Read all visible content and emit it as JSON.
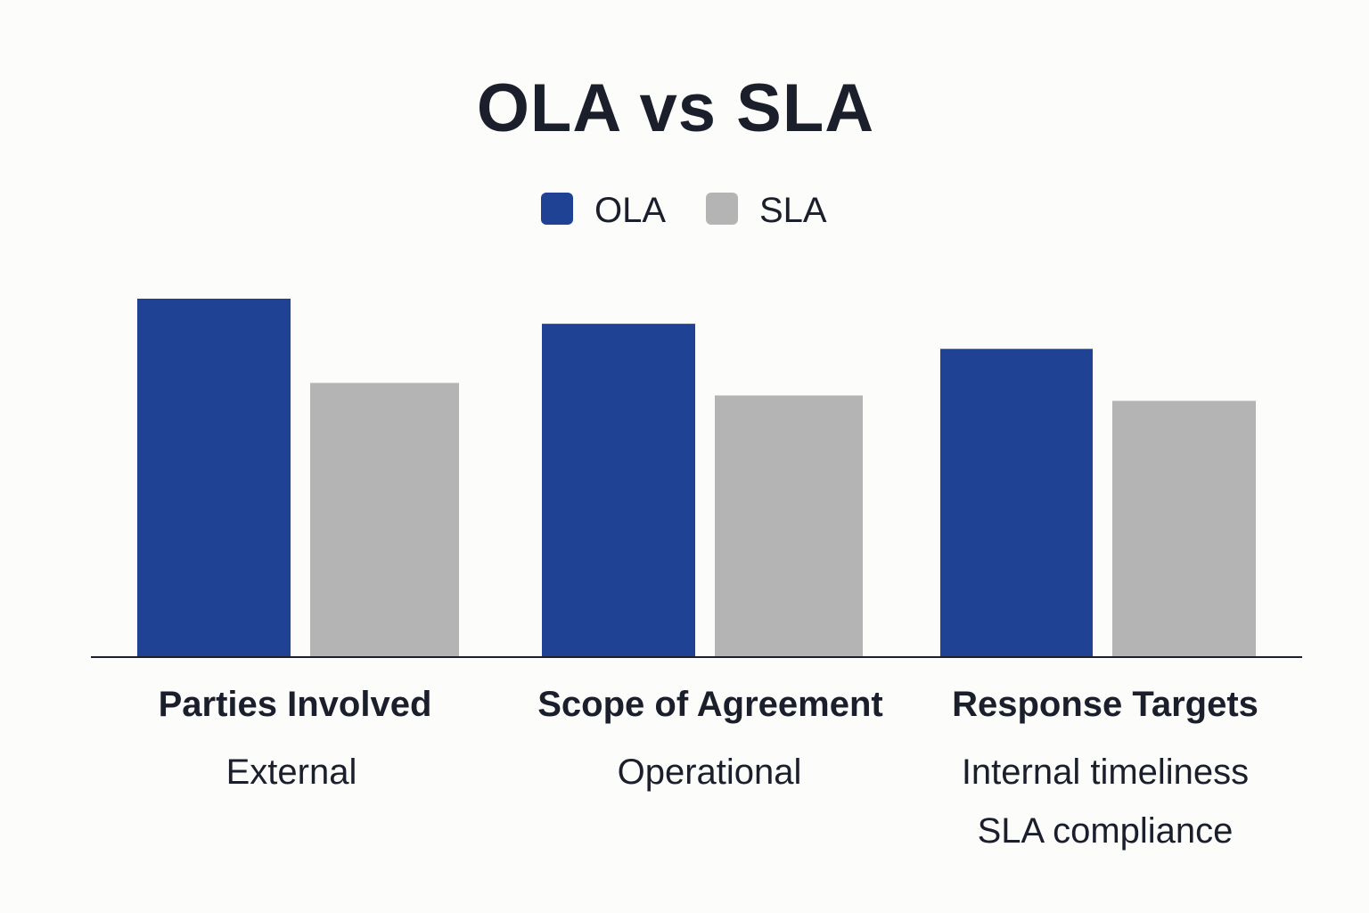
{
  "colors": {
    "ola": "#1f4295",
    "sla": "#b4b4b4",
    "axis": "#1b1f2b",
    "text": "#1b1f2b"
  },
  "chart_data": {
    "type": "bar",
    "title": "OLA vs SLA",
    "xlabel": "",
    "ylabel": "",
    "grid": false,
    "legend_placement": "top-center",
    "categories": [
      "Parties Involved",
      "Scope of Agreement",
      "Response Targets"
    ],
    "category_notes": [
      [
        "External"
      ],
      [
        "Operational"
      ],
      [
        "Internal timeliness",
        "SLA compliance"
      ]
    ],
    "series": [
      {
        "name": "OLA",
        "color": "#1f4295",
        "values": [
          100,
          93,
          86
        ]
      },
      {
        "name": "SLA",
        "color": "#b4b4b4",
        "values": [
          76.5,
          73,
          71.5
        ]
      }
    ],
    "ylim": [
      0,
      100
    ]
  }
}
